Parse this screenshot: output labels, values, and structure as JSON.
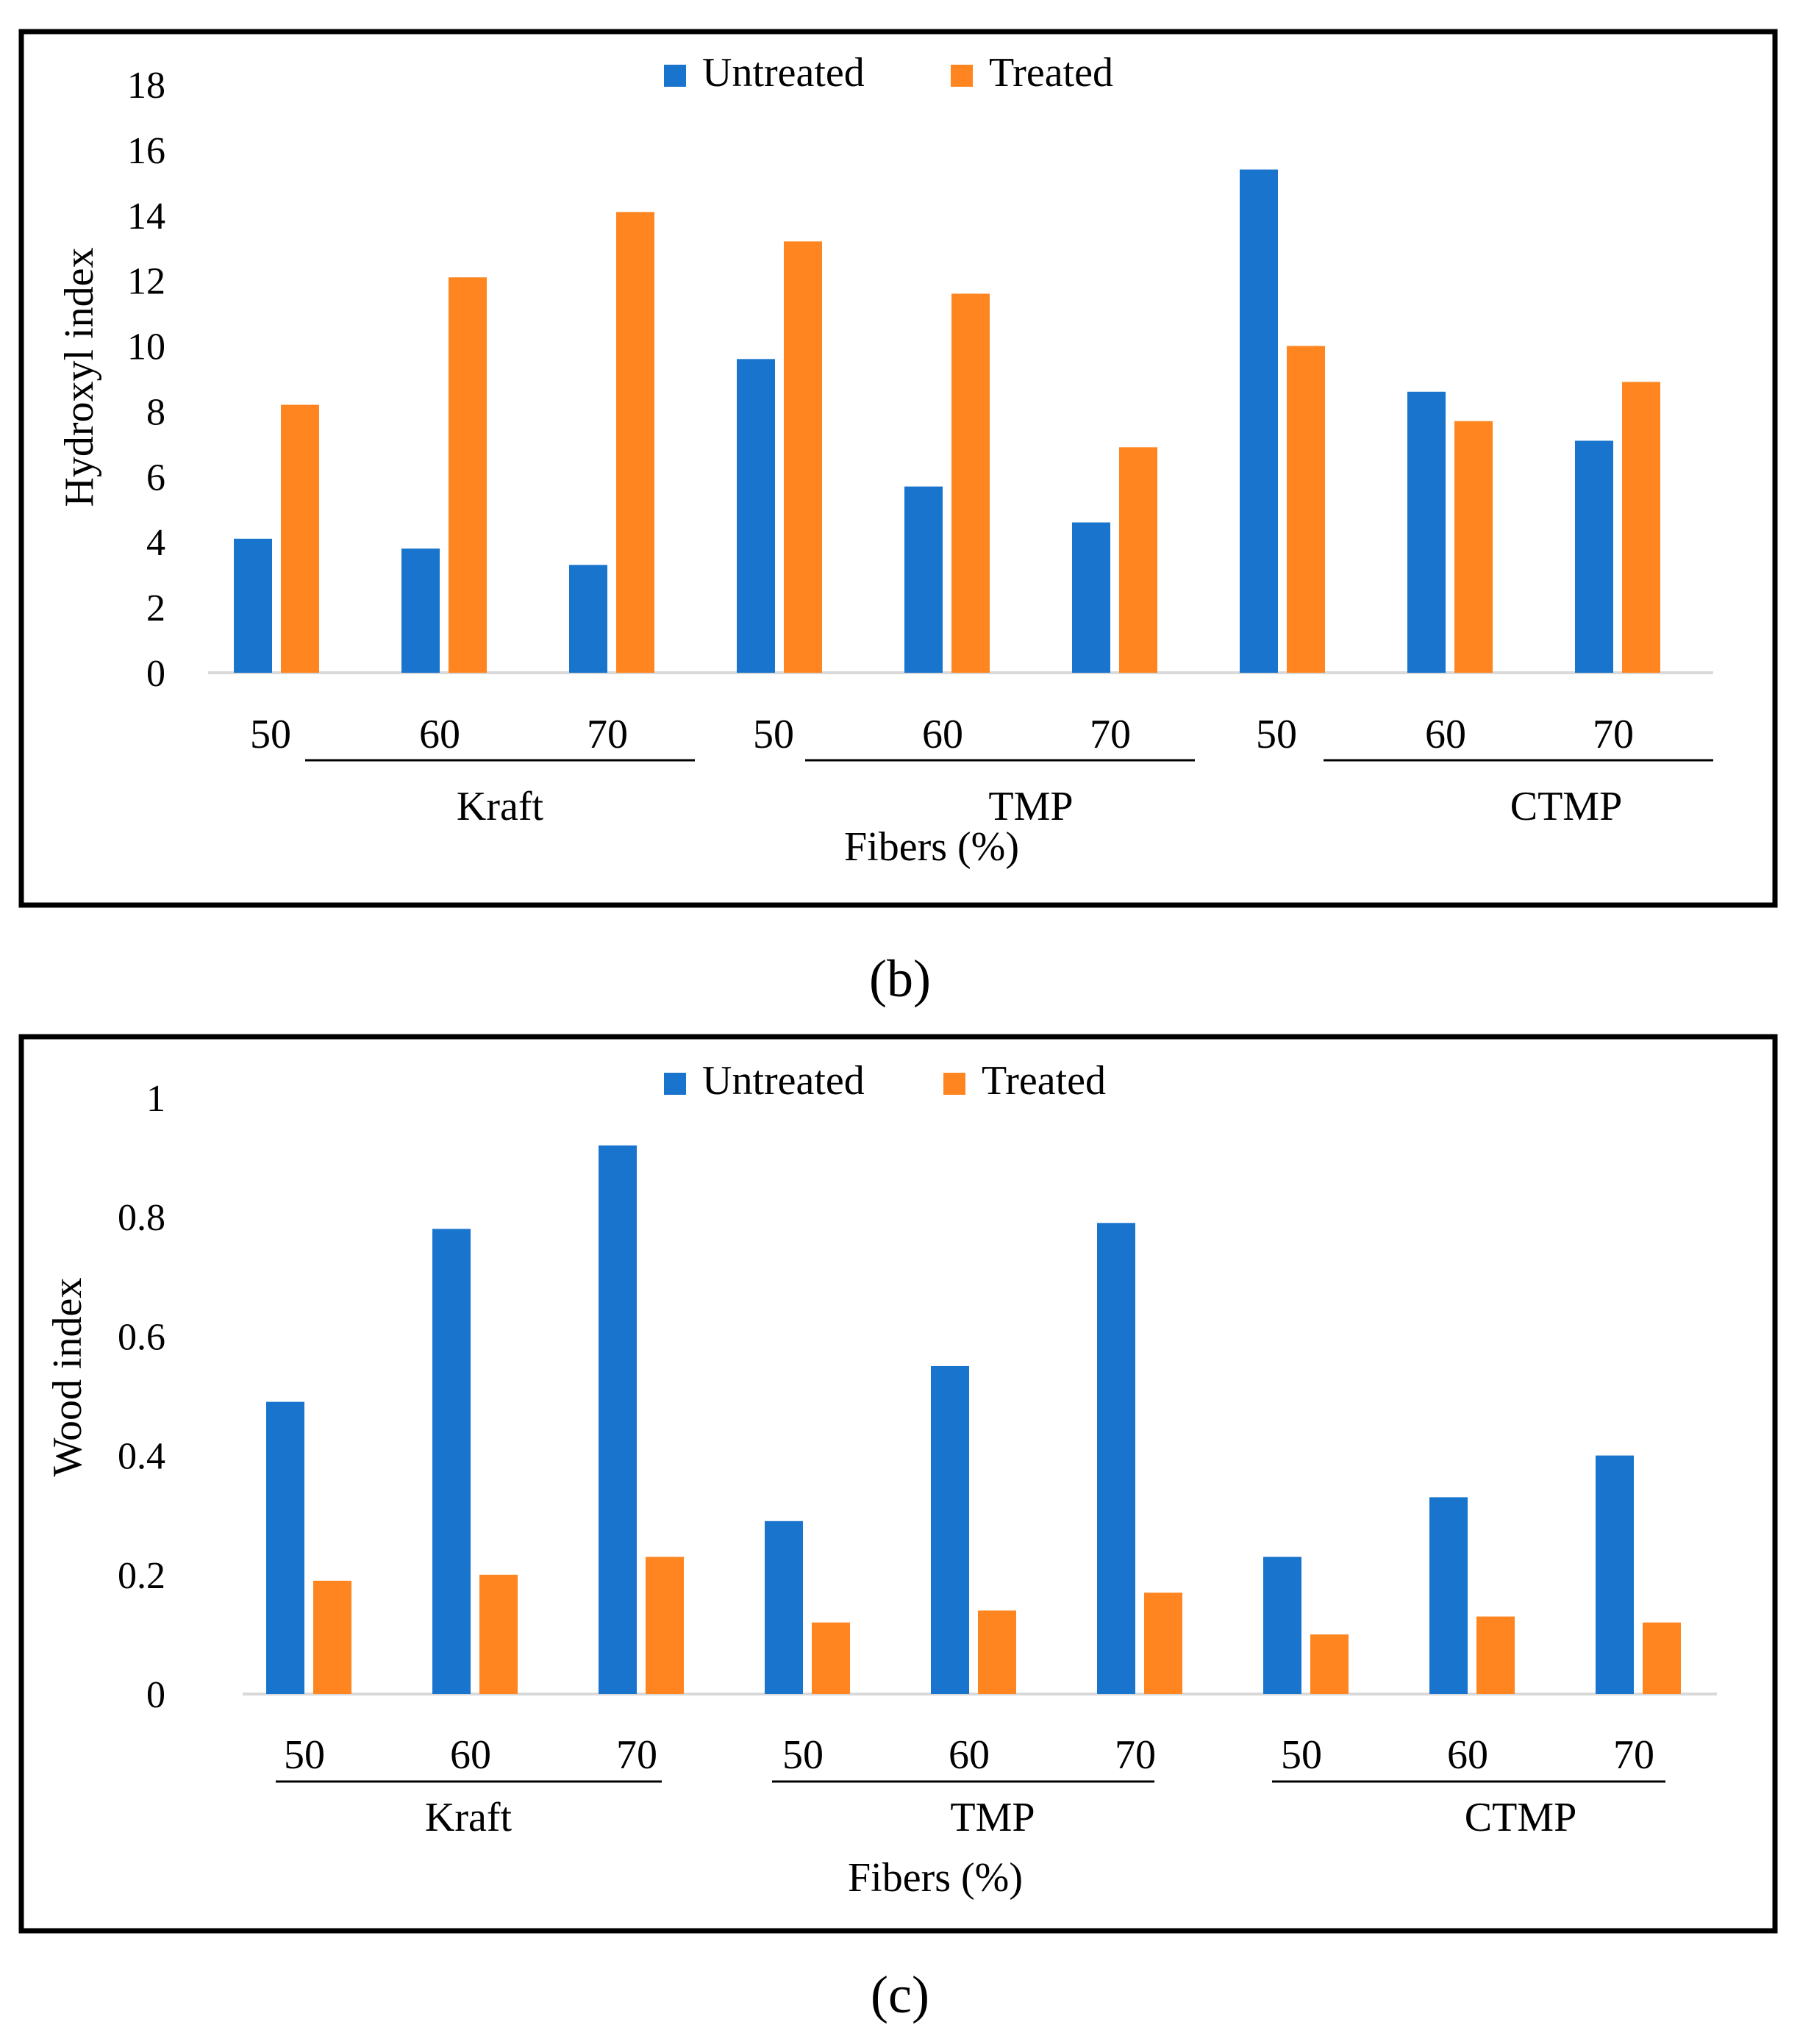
{
  "colors": {
    "untreated": "#1874CD",
    "treated": "#FF8520",
    "frame": "#000000",
    "axis": "#d9d9d9"
  },
  "chart_data": [
    {
      "type": "bar",
      "caption": "(b)",
      "ylabel": "Hydroxyl index",
      "xlabel": "Fibers (%)",
      "ylim": [
        0,
        18
      ],
      "yticks": [
        "0",
        "2",
        "4",
        "6",
        "8",
        "10",
        "12",
        "14",
        "16",
        "18"
      ],
      "groups": [
        "Kraft",
        "TMP",
        "CTMP"
      ],
      "categories": [
        "50",
        "60",
        "70",
        "50",
        "60",
        "70",
        "50",
        "60",
        "70"
      ],
      "series": [
        {
          "name": "Untreated",
          "values": [
            4.1,
            3.8,
            3.3,
            9.6,
            5.7,
            4.6,
            15.4,
            8.6,
            7.1
          ]
        },
        {
          "name": "Treated",
          "values": [
            8.2,
            12.1,
            14.1,
            13.2,
            11.6,
            6.9,
            10.0,
            7.7,
            8.9
          ]
        }
      ]
    },
    {
      "type": "bar",
      "caption": "(c)",
      "ylabel": "Wood index",
      "xlabel": "Fibers (%)",
      "ylim": [
        0,
        1
      ],
      "yticks": [
        "0",
        "0.2",
        "0.4",
        "0.6",
        "0.8",
        "1"
      ],
      "groups": [
        "Kraft",
        "TMP",
        "CTMP"
      ],
      "categories": [
        "50",
        "60",
        "70",
        "50",
        "60",
        "70",
        "50",
        "60",
        "70"
      ],
      "series": [
        {
          "name": "Untreated",
          "values": [
            0.49,
            0.78,
            0.92,
            0.29,
            0.55,
            0.79,
            0.23,
            0.33,
            0.4
          ]
        },
        {
          "name": "Treated",
          "values": [
            0.19,
            0.2,
            0.23,
            0.12,
            0.14,
            0.17,
            0.1,
            0.13,
            0.12
          ]
        }
      ]
    }
  ]
}
